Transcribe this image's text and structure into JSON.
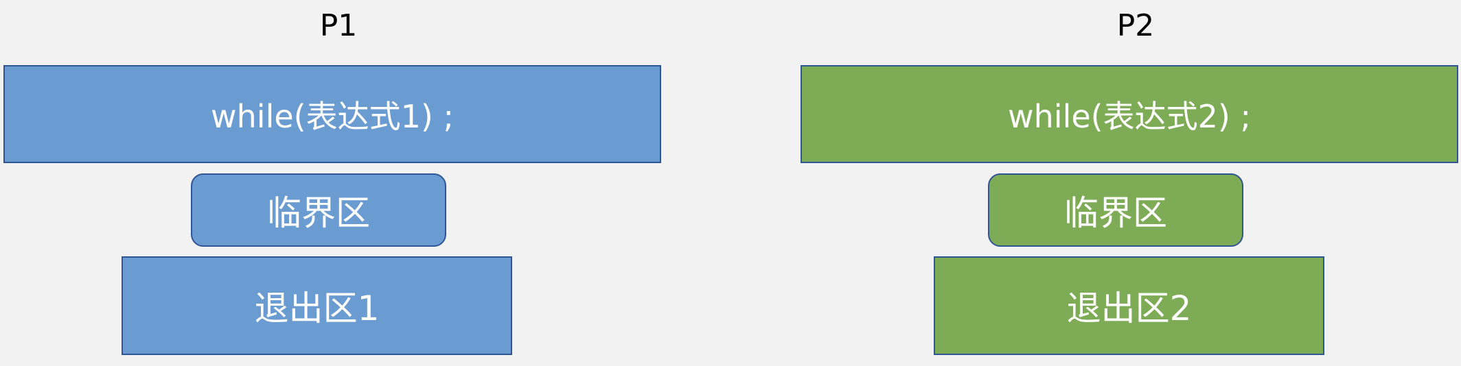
{
  "colors": {
    "background": "#f2f2f2",
    "p1_fill": "#6a9bd1",
    "p2_fill": "#7eab55",
    "border": "#2f5597",
    "text": "#ffffff"
  },
  "processes": [
    {
      "label": "P1",
      "entry": "while(表达式1) ;",
      "critical": "临界区",
      "exit": "退出区1"
    },
    {
      "label": "P2",
      "entry": "while(表达式2) ;",
      "critical": "临界区",
      "exit": "退出区2"
    }
  ]
}
